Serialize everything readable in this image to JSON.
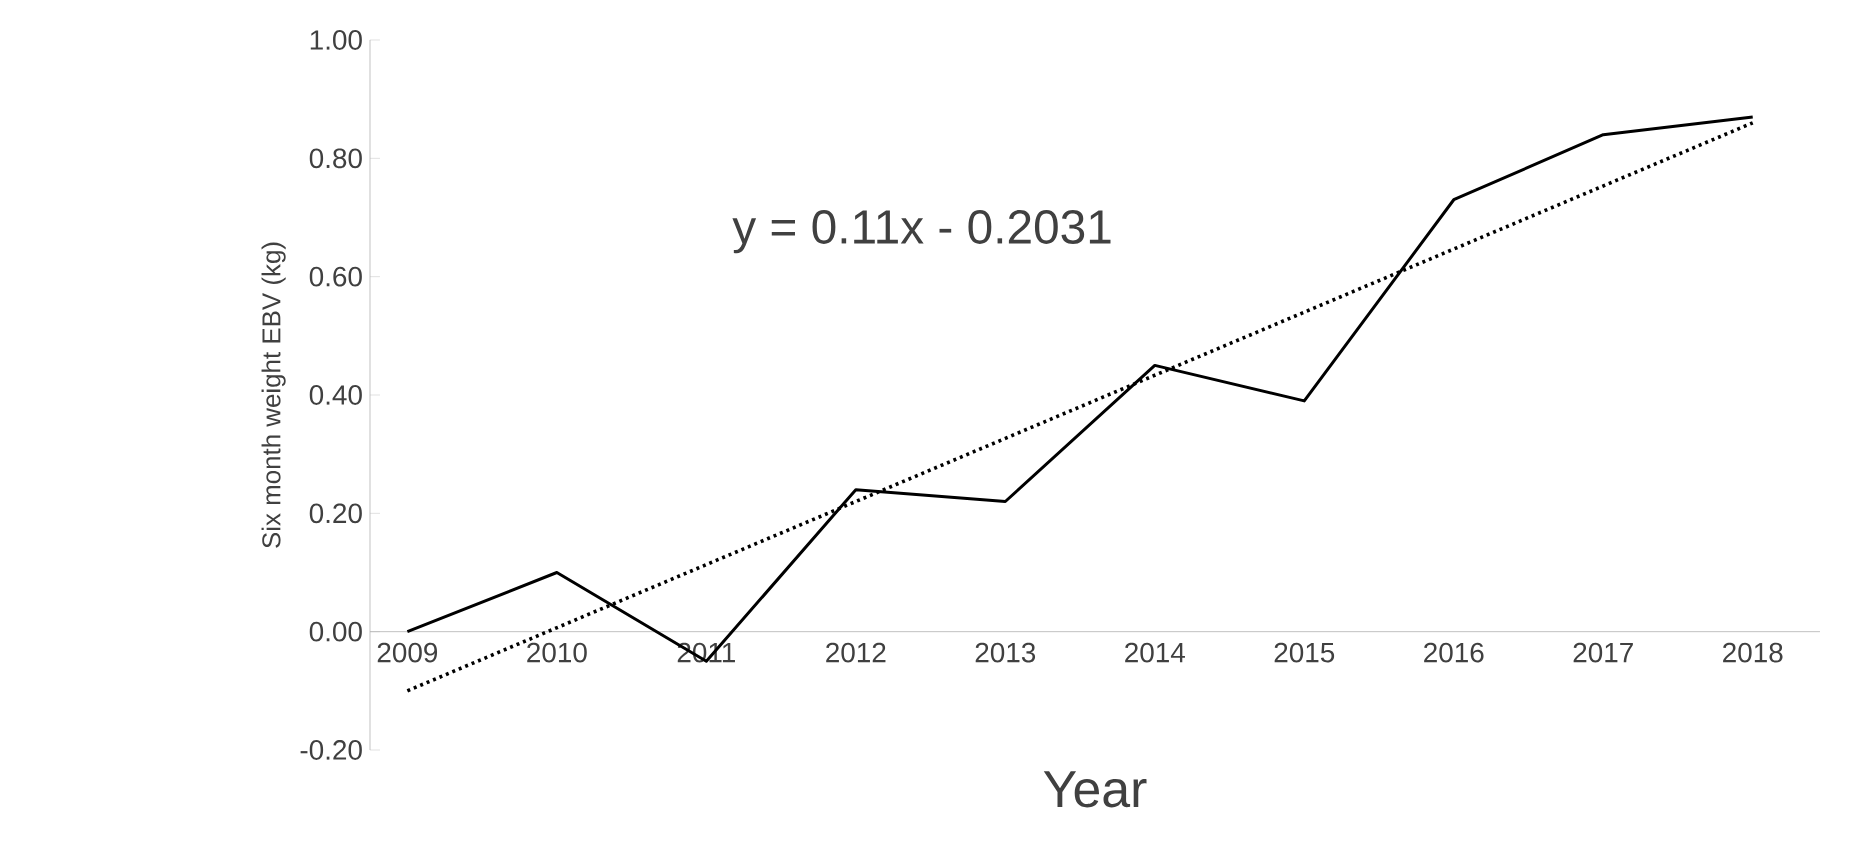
{
  "chart_data": {
    "type": "line",
    "xlabel": "Year",
    "ylabel": "Six month weight EBV (kg)",
    "categories": [
      "2009",
      "2010",
      "2011",
      "2012",
      "2013",
      "2014",
      "2015",
      "2016",
      "2017",
      "2018"
    ],
    "series": [
      {
        "color": "#000000",
        "values": [
          0.0,
          0.1,
          -0.05,
          0.24,
          0.22,
          0.45,
          0.39,
          0.73,
          0.84,
          0.87
        ],
        "line_style": "solid"
      },
      {
        "type": "line",
        "color": "#000000",
        "values": [
          -0.1,
          null,
          null,
          null,
          null,
          null,
          null,
          null,
          null,
          0.86
        ],
        "line_style": "dotted"
      }
    ],
    "ylim": [
      -0.2,
      1.0
    ],
    "yticks": [
      {
        "value": -0.2,
        "label": "-0.20"
      },
      {
        "value": 0,
        "label": "0.00"
      },
      {
        "value": 0.2,
        "label": "0.20"
      },
      {
        "value": 0.4,
        "label": "0.40"
      },
      {
        "value": 0.6,
        "label": "0.60"
      },
      {
        "value": 0.8,
        "label": "0.80"
      },
      {
        "value": 1.0,
        "label": "1.00"
      }
    ],
    "annotations": [
      "y = 0.11x - 0.2031"
    ],
    "marker": "none"
  }
}
